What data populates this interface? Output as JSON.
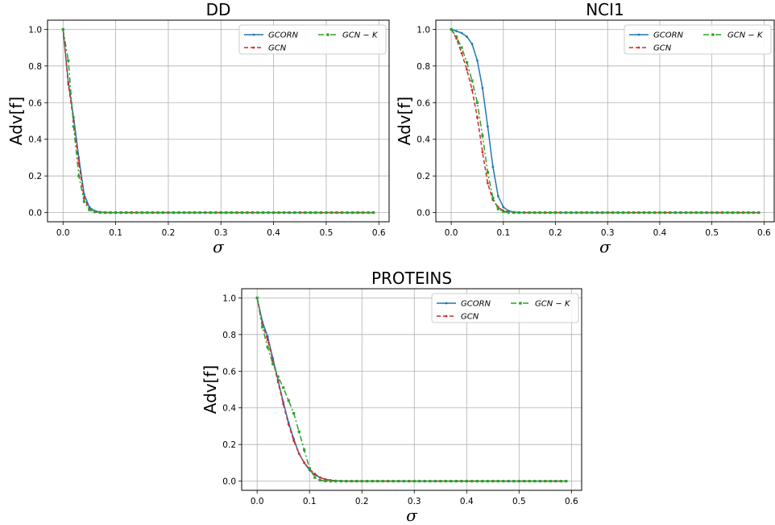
{
  "chart_data": [
    {
      "type": "line",
      "title": "DD",
      "xlabel": "σ",
      "ylabel": "Adv[f]",
      "xlim": [
        -0.0295,
        0.6195
      ],
      "ylim": [
        -0.05,
        1.05
      ],
      "xticks": [
        "0.0",
        "0.1",
        "0.2",
        "0.3",
        "0.4",
        "0.5",
        "0.6"
      ],
      "yticks": [
        "0.0",
        "0.2",
        "0.4",
        "0.6",
        "0.8",
        "1.0"
      ],
      "grid": true,
      "legend": "top-right",
      "x": [
        0.0,
        0.01,
        0.02,
        0.03,
        0.04,
        0.05,
        0.06,
        0.07,
        0.08,
        0.09,
        0.1,
        0.11,
        0.12,
        0.13,
        0.14,
        0.15,
        0.16,
        0.17,
        0.18,
        0.19,
        0.2,
        0.21,
        0.22,
        0.23,
        0.24,
        0.25,
        0.26,
        0.27,
        0.28,
        0.29,
        0.3,
        0.31,
        0.32,
        0.33,
        0.34,
        0.35,
        0.36,
        0.37,
        0.38,
        0.39,
        0.4,
        0.41,
        0.42,
        0.43,
        0.44,
        0.45,
        0.46,
        0.47,
        0.48,
        0.49,
        0.5,
        0.51,
        0.52,
        0.53,
        0.54,
        0.55,
        0.56,
        0.57,
        0.58,
        0.59
      ],
      "series": [
        {
          "name": "GCORN",
          "color": "#1f77b4",
          "style": "solid",
          "marker": "dot",
          "values": [
            1.0,
            0.71,
            0.52,
            0.3,
            0.1,
            0.03,
            0.01,
            0.003,
            0.001,
            0,
            0,
            0,
            0,
            0,
            0,
            0,
            0,
            0,
            0,
            0,
            0,
            0,
            0,
            0,
            0,
            0,
            0,
            0,
            0,
            0,
            0,
            0,
            0,
            0,
            0,
            0,
            0,
            0,
            0,
            0,
            0,
            0,
            0,
            0,
            0,
            0,
            0,
            0,
            0,
            0,
            0,
            0,
            0,
            0,
            0,
            0,
            0,
            0,
            0,
            0
          ]
        },
        {
          "name": "GCN",
          "color": "#d62728",
          "style": "dashed",
          "marker": "dot",
          "values": [
            1.0,
            0.7,
            0.5,
            0.27,
            0.08,
            0.02,
            0.005,
            0.001,
            0,
            0,
            0,
            0,
            0,
            0,
            0,
            0,
            0,
            0,
            0,
            0,
            0,
            0,
            0,
            0,
            0,
            0,
            0,
            0,
            0,
            0,
            0,
            0,
            0,
            0,
            0,
            0,
            0,
            0,
            0,
            0,
            0,
            0,
            0,
            0,
            0,
            0,
            0,
            0,
            0,
            0,
            0,
            0,
            0,
            0,
            0,
            0,
            0,
            0,
            0,
            0
          ]
        },
        {
          "name": "GCN − K",
          "color": "#2ca02c",
          "style": "dashdot",
          "marker": "square",
          "values": [
            1.0,
            0.83,
            0.47,
            0.2,
            0.06,
            0.015,
            0.004,
            0.001,
            0,
            0,
            0,
            0,
            0,
            0,
            0,
            0,
            0,
            0,
            0,
            0,
            0,
            0,
            0,
            0,
            0,
            0,
            0,
            0,
            0,
            0,
            0,
            0,
            0,
            0,
            0,
            0,
            0,
            0,
            0,
            0,
            0,
            0,
            0,
            0,
            0,
            0,
            0,
            0,
            0,
            0,
            0,
            0,
            0,
            0,
            0,
            0,
            0,
            0,
            0,
            0
          ]
        }
      ]
    },
    {
      "type": "line",
      "title": "NCI1",
      "xlabel": "σ",
      "ylabel": "Adv[f]",
      "xlim": [
        -0.0295,
        0.6195
      ],
      "ylim": [
        -0.05,
        1.05
      ],
      "xticks": [
        "0.0",
        "0.1",
        "0.2",
        "0.3",
        "0.4",
        "0.5",
        "0.6"
      ],
      "yticks": [
        "0.0",
        "0.2",
        "0.4",
        "0.6",
        "0.8",
        "1.0"
      ],
      "grid": true,
      "legend": "top-right",
      "x": [
        0.0,
        0.01,
        0.02,
        0.03,
        0.04,
        0.05,
        0.06,
        0.07,
        0.08,
        0.09,
        0.1,
        0.11,
        0.12,
        0.13,
        0.14,
        0.15,
        0.16,
        0.17,
        0.18,
        0.19,
        0.2,
        0.21,
        0.22,
        0.23,
        0.24,
        0.25,
        0.26,
        0.27,
        0.28,
        0.29,
        0.3,
        0.31,
        0.32,
        0.33,
        0.34,
        0.35,
        0.36,
        0.37,
        0.38,
        0.39,
        0.4,
        0.41,
        0.42,
        0.43,
        0.44,
        0.45,
        0.46,
        0.47,
        0.48,
        0.49,
        0.5,
        0.51,
        0.52,
        0.53,
        0.54,
        0.55,
        0.56,
        0.57,
        0.58,
        0.59
      ],
      "series": [
        {
          "name": "GCORN",
          "color": "#1f77b4",
          "style": "solid",
          "marker": "dot",
          "values": [
            1.0,
            0.99,
            0.98,
            0.96,
            0.92,
            0.83,
            0.68,
            0.47,
            0.25,
            0.09,
            0.03,
            0.01,
            0.003,
            0.001,
            0,
            0,
            0,
            0,
            0,
            0,
            0,
            0,
            0,
            0,
            0,
            0,
            0,
            0,
            0,
            0,
            0,
            0,
            0,
            0,
            0,
            0,
            0,
            0,
            0,
            0,
            0,
            0,
            0,
            0,
            0,
            0,
            0,
            0,
            0,
            0,
            0,
            0,
            0,
            0,
            0,
            0,
            0,
            0,
            0,
            0
          ]
        },
        {
          "name": "GCN",
          "color": "#d62728",
          "style": "dashed",
          "marker": "dot",
          "values": [
            1.0,
            0.95,
            0.87,
            0.78,
            0.67,
            0.52,
            0.33,
            0.16,
            0.07,
            0.03,
            0.01,
            0.004,
            0.001,
            0,
            0,
            0,
            0,
            0,
            0,
            0,
            0,
            0,
            0,
            0,
            0,
            0,
            0,
            0,
            0,
            0,
            0,
            0,
            0,
            0,
            0,
            0,
            0,
            0,
            0,
            0,
            0,
            0,
            0,
            0,
            0,
            0,
            0,
            0,
            0,
            0,
            0,
            0,
            0,
            0,
            0,
            0,
            0,
            0,
            0,
            0
          ]
        },
        {
          "name": "GCN − K",
          "color": "#2ca02c",
          "style": "dashdot",
          "marker": "square",
          "values": [
            1.0,
            0.96,
            0.9,
            0.82,
            0.72,
            0.6,
            0.42,
            0.22,
            0.08,
            0.02,
            0.005,
            0.001,
            0,
            0,
            0,
            0,
            0,
            0,
            0,
            0,
            0,
            0,
            0,
            0,
            0,
            0,
            0,
            0,
            0,
            0,
            0,
            0,
            0,
            0,
            0,
            0,
            0,
            0,
            0,
            0,
            0,
            0,
            0,
            0,
            0,
            0,
            0,
            0,
            0,
            0,
            0,
            0,
            0,
            0,
            0,
            0,
            0,
            0,
            0,
            0
          ]
        }
      ]
    },
    {
      "type": "line",
      "title": "PROTEINS",
      "xlabel": "σ",
      "ylabel": "Adv[f]",
      "xlim": [
        -0.0295,
        0.6195
      ],
      "ylim": [
        -0.05,
        1.05
      ],
      "xticks": [
        "0.0",
        "0.1",
        "0.2",
        "0.3",
        "0.4",
        "0.5",
        "0.6"
      ],
      "yticks": [
        "0.0",
        "0.2",
        "0.4",
        "0.6",
        "0.8",
        "1.0"
      ],
      "grid": true,
      "legend": "top-right",
      "x": [
        0.0,
        0.01,
        0.02,
        0.03,
        0.04,
        0.05,
        0.06,
        0.07,
        0.08,
        0.09,
        0.1,
        0.11,
        0.12,
        0.13,
        0.14,
        0.15,
        0.16,
        0.17,
        0.18,
        0.19,
        0.2,
        0.21,
        0.22,
        0.23,
        0.24,
        0.25,
        0.26,
        0.27,
        0.28,
        0.29,
        0.3,
        0.31,
        0.32,
        0.33,
        0.34,
        0.35,
        0.36,
        0.37,
        0.38,
        0.39,
        0.4,
        0.41,
        0.42,
        0.43,
        0.44,
        0.45,
        0.46,
        0.47,
        0.48,
        0.49,
        0.5,
        0.51,
        0.52,
        0.53,
        0.54,
        0.55,
        0.56,
        0.57,
        0.58,
        0.59
      ],
      "series": [
        {
          "name": "GCORN",
          "color": "#1f77b4",
          "style": "solid",
          "marker": "dot",
          "values": [
            1.0,
            0.87,
            0.79,
            0.67,
            0.55,
            0.43,
            0.32,
            0.23,
            0.15,
            0.1,
            0.06,
            0.035,
            0.02,
            0.01,
            0.005,
            0.002,
            0.001,
            0,
            0,
            0,
            0,
            0,
            0,
            0,
            0,
            0,
            0,
            0,
            0,
            0,
            0,
            0,
            0,
            0,
            0,
            0,
            0,
            0,
            0,
            0,
            0,
            0,
            0,
            0,
            0,
            0,
            0,
            0,
            0,
            0,
            0,
            0,
            0,
            0,
            0,
            0,
            0,
            0,
            0,
            0
          ]
        },
        {
          "name": "GCN",
          "color": "#d62728",
          "style": "dashed",
          "marker": "dot",
          "values": [
            1.0,
            0.86,
            0.77,
            0.66,
            0.54,
            0.42,
            0.31,
            0.22,
            0.15,
            0.1,
            0.065,
            0.04,
            0.02,
            0.01,
            0.005,
            0.002,
            0.001,
            0,
            0,
            0,
            0,
            0,
            0,
            0,
            0,
            0,
            0,
            0,
            0,
            0,
            0,
            0,
            0,
            0,
            0,
            0,
            0,
            0,
            0,
            0,
            0,
            0,
            0,
            0,
            0,
            0,
            0,
            0,
            0,
            0,
            0,
            0,
            0,
            0,
            0,
            0,
            0,
            0,
            0,
            0
          ]
        },
        {
          "name": "GCN − K",
          "color": "#2ca02c",
          "style": "dashdot",
          "marker": "square",
          "values": [
            1.0,
            0.84,
            0.73,
            0.64,
            0.57,
            0.51,
            0.44,
            0.37,
            0.27,
            0.17,
            0.07,
            0.02,
            0.005,
            0.001,
            0,
            0,
            0,
            0,
            0,
            0,
            0,
            0,
            0,
            0,
            0,
            0,
            0,
            0,
            0,
            0,
            0,
            0,
            0,
            0,
            0,
            0,
            0,
            0,
            0,
            0,
            0,
            0,
            0,
            0,
            0,
            0,
            0,
            0,
            0,
            0,
            0,
            0,
            0,
            0,
            0,
            0,
            0,
            0,
            0,
            0
          ]
        }
      ]
    }
  ]
}
